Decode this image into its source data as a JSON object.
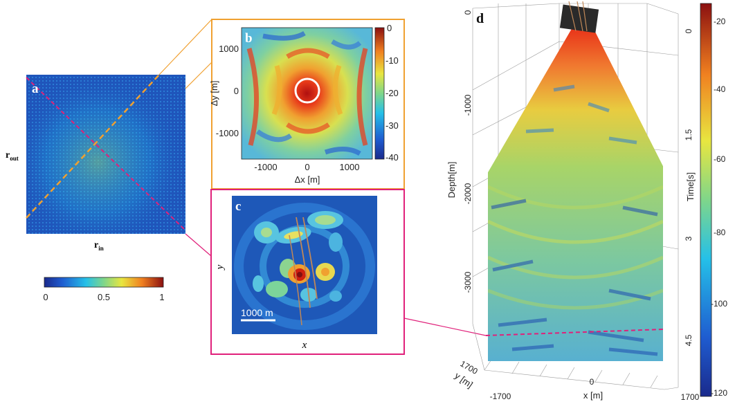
{
  "panel_a": {
    "letter": "a",
    "ylabel_main": "r",
    "ylabel_sub": "out",
    "xlabel_main": "r",
    "xlabel_sub": "in",
    "colorbar_ticks": [
      "0",
      "0.5",
      "1"
    ],
    "colors": {
      "base": "#1e56b8",
      "diag_orange": "#f0a030",
      "diag_magenta": "#e0207a"
    }
  },
  "panel_b": {
    "letter": "b",
    "xlabel": "Δx [m]",
    "ylabel": "Δy [m]",
    "xticks": [
      "-1000",
      "0",
      "1000"
    ],
    "yticks": [
      "1000",
      "0",
      "-1000"
    ],
    "colorbar_ticks": [
      "0",
      "-10",
      "-20",
      "-30",
      "-40"
    ],
    "frame_color": "#f0a030"
  },
  "panel_c": {
    "letter": "c",
    "xlabel": "x",
    "ylabel": "y",
    "scalebar_label": "1000 m",
    "frame_color": "#e0207a"
  },
  "panel_d": {
    "letter": "d",
    "depth_label": "Depth[m]",
    "depth_ticks": [
      "0",
      "-1000",
      "-2000",
      "-3000"
    ],
    "time_label": "Time[s]",
    "time_ticks": [
      "0",
      "1.5",
      "3",
      "4.5"
    ],
    "x_label": "x [m]",
    "x_ticks": [
      "-1700",
      "0",
      "1700"
    ],
    "y_label": "y [m]",
    "y_tick": "1700",
    "colorbar_ticks": [
      "-20",
      "-40",
      "-60",
      "-80",
      "-100",
      "-120"
    ]
  },
  "chart_data": [
    {
      "type": "heatmap",
      "panel": "a",
      "xlabel": "r_in",
      "ylabel": "r_out",
      "colorbar": {
        "range": [
          0,
          1
        ],
        "ticks": [
          0,
          0.5,
          1
        ]
      }
    },
    {
      "type": "heatmap",
      "panel": "b",
      "xlabel": "Δx [m]",
      "ylabel": "Δy [m]",
      "xlim": [
        -1500,
        1500
      ],
      "ylim": [
        -1500,
        1500
      ],
      "xticks": [
        -1000,
        0,
        1000
      ],
      "yticks": [
        -1000,
        0,
        1000
      ],
      "colorbar": {
        "range": [
          -40,
          0
        ],
        "ticks": [
          0,
          -10,
          -20,
          -30,
          -40
        ]
      }
    },
    {
      "type": "heatmap",
      "panel": "c",
      "xlabel": "x",
      "ylabel": "y"
    },
    {
      "type": "heatmap",
      "panel": "d",
      "zlabel": "Depth[m]",
      "zticks": [
        0,
        -1000,
        -2000,
        -3000
      ],
      "time_label": "Time[s]",
      "time_ticks": [
        0,
        1.5,
        3,
        4.5
      ],
      "xlabel": "x [m]",
      "xticks": [
        -1700,
        0,
        1700
      ],
      "ylabel": "y [m]",
      "colorbar": {
        "range": [
          -120,
          -15
        ],
        "ticks": [
          -20,
          -40,
          -60,
          -80,
          -100,
          -120
        ]
      }
    }
  ]
}
